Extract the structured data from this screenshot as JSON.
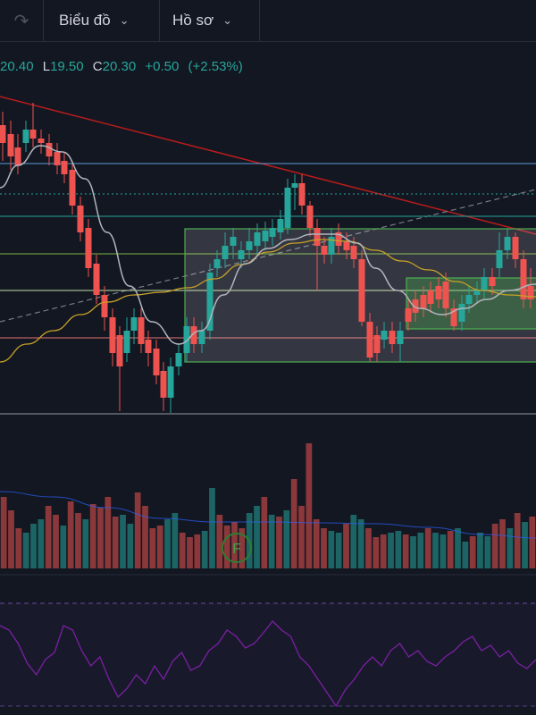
{
  "toolbar": {
    "redo_icon": "redo-icon",
    "chart_menu_label": "Biểu đồ",
    "profile_menu_label": "Hồ sơ"
  },
  "legend": {
    "open_value": "20.40",
    "low_label": "L",
    "low_value": "19.50",
    "close_label": "C",
    "close_value": "20.30",
    "change": "+0.50",
    "change_pct": "(+2.53%)"
  },
  "event_marker": {
    "label": "F"
  },
  "colors": {
    "background": "#131722",
    "up": "#26a69a",
    "down": "#ef5350",
    "ma_fast": "#b2b5be",
    "ma_slow": "#c9a227",
    "rsi": "#7b1fa2",
    "range_box": "#4caf50",
    "resistance": "#5b9bd5",
    "support": "#e57373",
    "trendline": "#b71c1c"
  }
}
